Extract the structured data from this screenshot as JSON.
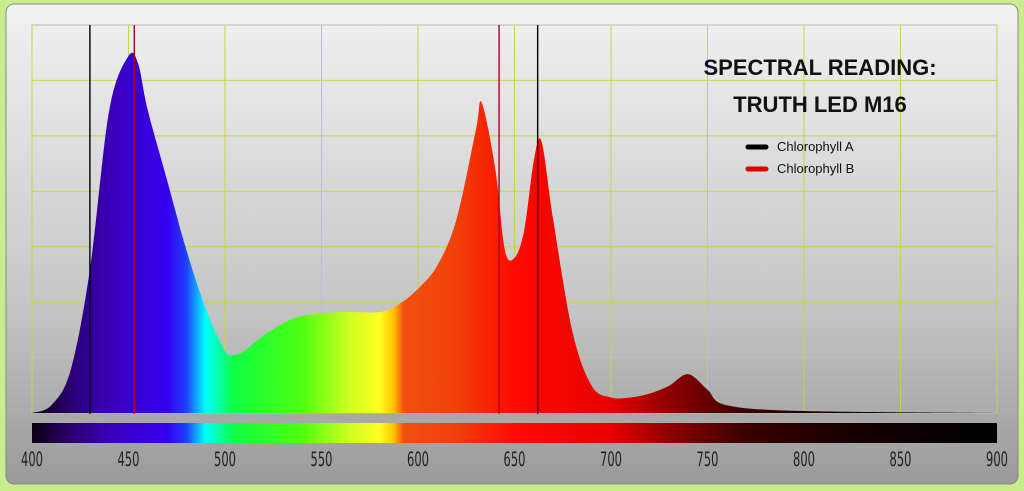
{
  "chart_data": {
    "type": "area",
    "title": "SPECTRAL READING:",
    "subtitle": "TRUTH LED M16",
    "xlabel": "",
    "ylabel": "",
    "xlim": [
      400,
      900
    ],
    "ylim": [
      0,
      1
    ],
    "grid": true,
    "legend_position": "top-right",
    "x_ticks": [
      "400",
      "450",
      "500",
      "550",
      "600",
      "650",
      "700",
      "750",
      "800",
      "850",
      "900"
    ],
    "series": [
      {
        "x": [
          400,
          410,
          420,
          430,
          440,
          450,
          455,
          460,
          470,
          480,
          490,
          500,
          505,
          510,
          520,
          530,
          540,
          560,
          580,
          590,
          600,
          610,
          620,
          630,
          633,
          640,
          645,
          650,
          655,
          660,
          664,
          670,
          680,
          690,
          700,
          710,
          720,
          730,
          740,
          750,
          760,
          800,
          900
        ],
        "y": [
          0.0,
          0.02,
          0.11,
          0.37,
          0.78,
          0.92,
          0.9,
          0.78,
          0.6,
          0.42,
          0.27,
          0.16,
          0.15,
          0.16,
          0.2,
          0.23,
          0.25,
          0.26,
          0.26,
          0.28,
          0.32,
          0.38,
          0.5,
          0.73,
          0.8,
          0.63,
          0.42,
          0.4,
          0.47,
          0.65,
          0.7,
          0.5,
          0.21,
          0.07,
          0.04,
          0.04,
          0.05,
          0.07,
          0.1,
          0.06,
          0.02,
          0.005,
          0.0
        ]
      }
    ],
    "reference_lines": [
      {
        "name": "Chlorophyll A",
        "color": "#000000",
        "x": [
          430,
          662
        ]
      },
      {
        "name": "Chlorophyll B",
        "color": "#e00000",
        "x": [
          453,
          642
        ]
      }
    ]
  }
}
